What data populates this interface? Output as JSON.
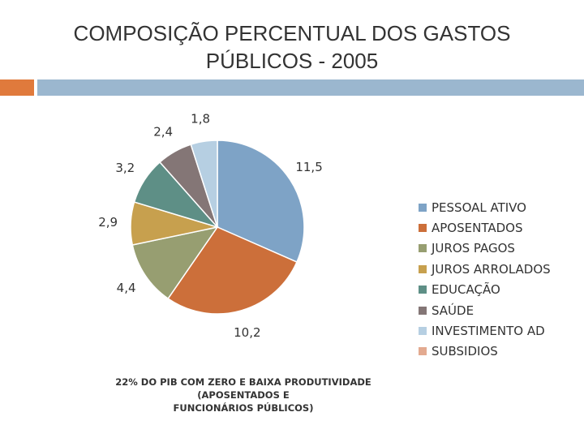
{
  "title": {
    "line1": "COMPOSIÇÃO PERCENTUAL DOS GASTOS",
    "line2": "PÚBLICOS - 2005"
  },
  "chart_data": {
    "type": "pie",
    "title": "COMPOSIÇÃO PERCENTUAL DOS GASTOS PÚBLICOS - 2005",
    "categories": [
      "PESSOAL ATIVO",
      "APOSENTADOS",
      "JUROS PAGOS",
      "JUROS ARROLADOS",
      "EDUCAÇÃO",
      "SAÚDE",
      "INVESTIMENTO AD",
      "SUBSIDIOS"
    ],
    "values": [
      11.5,
      10.2,
      4.4,
      2.9,
      3.2,
      2.4,
      1.8,
      0
    ],
    "value_labels": [
      "11,5",
      "10,2",
      "4,4",
      "2,9",
      "3,2",
      "2,4",
      "1,8",
      ""
    ],
    "colors": [
      "#7ea3c6",
      "#cc6f3a",
      "#979e71",
      "#c7a04e",
      "#5e8f86",
      "#847676",
      "#b6cfe2",
      "#e3aa90"
    ],
    "legend_position": "right"
  },
  "footnote": {
    "line1": "22% DO PIB COM ZERO E BAIXA PRODUTIVIDADE (APOSENTADOS E",
    "line2": "FUNCIONÁRIOS PÚBLICOS)"
  },
  "decor": {
    "accent_color": "#e07a3c",
    "band_color": "#9bb7cf"
  }
}
